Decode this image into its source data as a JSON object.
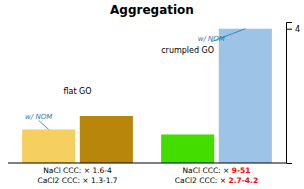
{
  "chart_data": {
    "type": "bar",
    "title": "Aggregation",
    "categories": [
      null,
      null,
      null,
      null
    ],
    "values": [
      1.0,
      1.4,
      0.85,
      4.0
    ],
    "colors": [
      "#F5D060",
      "#B8860B",
      "#44DD00",
      "#9DC3E6"
    ],
    "ylim": [
      0,
      4.2
    ],
    "yticks": [
      4
    ],
    "tick_labels": "y",
    "annotations": [
      {
        "text": "w/ NOM"
      },
      {
        "text": "w/ NOM"
      },
      {
        "text": "flat GO"
      },
      {
        "text": "crumpled GO"
      }
    ],
    "group_labels": [
      [
        [
          {
            "text": "NaCl CCC: × 1.6-4"
          }
        ],
        [
          {
            "text": "CaCl2 CCC: × 1.3-1.7"
          }
        ]
      ],
      [
        [
          {
            "text": "NaCl CCC: × "
          },
          {
            "text": "9-51",
            "color": "red"
          }
        ],
        [
          {
            "text": "CaCl2 CCC: × "
          },
          {
            "text": "2.7-4.2",
            "color": "red"
          }
        ]
      ]
    ]
  }
}
